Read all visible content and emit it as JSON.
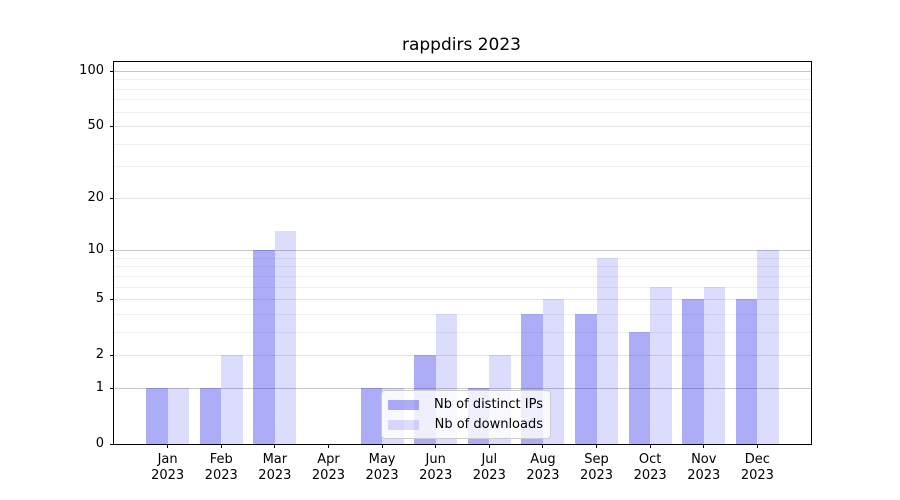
{
  "title": "rappdirs 2023",
  "chart_data": {
    "type": "bar",
    "title": "rappdirs 2023",
    "categories": [
      {
        "month": "Jan",
        "year": "2023"
      },
      {
        "month": "Feb",
        "year": "2023"
      },
      {
        "month": "Mar",
        "year": "2023"
      },
      {
        "month": "Apr",
        "year": "2023"
      },
      {
        "month": "May",
        "year": "2023"
      },
      {
        "month": "Jun",
        "year": "2023"
      },
      {
        "month": "Jul",
        "year": "2023"
      },
      {
        "month": "Aug",
        "year": "2023"
      },
      {
        "month": "Sep",
        "year": "2023"
      },
      {
        "month": "Oct",
        "year": "2023"
      },
      {
        "month": "Nov",
        "year": "2023"
      },
      {
        "month": "Dec",
        "year": "2023"
      }
    ],
    "series": [
      {
        "name": "Nb of distinct IPs",
        "color": "#2828eb61",
        "values": [
          1,
          1,
          10,
          0,
          1,
          2,
          1,
          4,
          4,
          3,
          5,
          5
        ]
      },
      {
        "name": "Nb of downloads",
        "color": "#2828eb29",
        "values": [
          1,
          2,
          13,
          0,
          1,
          4,
          2,
          5,
          9,
          6,
          6,
          10
        ]
      }
    ],
    "y_axis": {
      "scale": "log1p",
      "tick_labels": [
        "0",
        "1",
        "2",
        "5",
        "10",
        "20",
        "50",
        "100"
      ],
      "tick_values": [
        0,
        1,
        2,
        5,
        10,
        20,
        50,
        100
      ],
      "major_grid_values": [
        1,
        10,
        100
      ],
      "labeled_grid_values": [
        2,
        5,
        20,
        50
      ],
      "minor_grid_values": [
        3,
        4,
        6,
        7,
        8,
        9,
        30,
        40,
        60,
        70,
        80,
        90
      ],
      "ylim_top_value": 100
    },
    "legend": {
      "entries": [
        "Nb of distinct IPs",
        "Nb of downloads"
      ],
      "position": "lower-center-inside"
    },
    "grid": true,
    "colors": {
      "bar_distinct_ips": "#2828eb61",
      "bar_downloads": "#2828eb29",
      "axis": "#000000",
      "grid_major": "#c8c8c8",
      "grid_labeled": "#e4e4e4",
      "grid_minor": "#efefef",
      "legend_border": "#cccccc",
      "background": "#ffffff"
    }
  }
}
